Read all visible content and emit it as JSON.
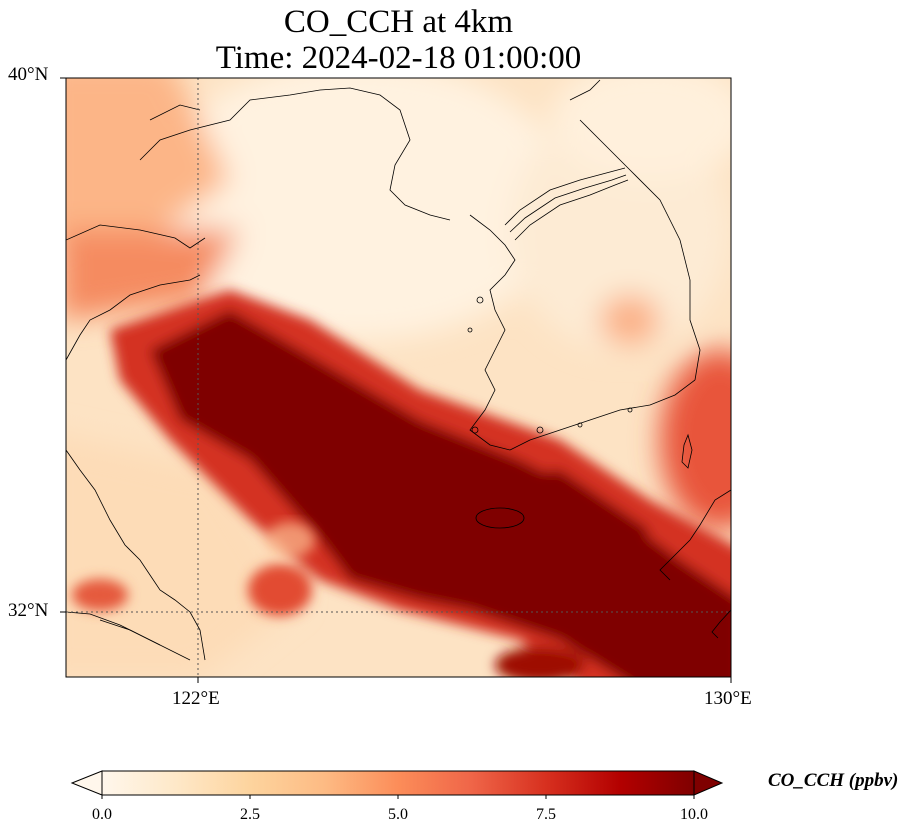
{
  "title_line1": "CO_CCH at 4km",
  "title_line2": "Time: 2024-02-18 01:00:00",
  "lat_labels": [
    "40°N",
    "32°N"
  ],
  "lon_labels": [
    "122°E",
    "130°E"
  ],
  "colorbar": {
    "label": "CO_CCH (ppbv)",
    "ticks": [
      "0.0",
      "2.5",
      "5.0",
      "7.5",
      "10.0"
    ],
    "range": [
      0,
      10
    ],
    "extend": "both",
    "cmap": "OrRd",
    "colors": [
      "#fff7ec",
      "#fee8c8",
      "#fdd49e",
      "#fdbb84",
      "#fc8d59",
      "#ef6548",
      "#d7301f",
      "#b30000",
      "#7f0000"
    ]
  },
  "map": {
    "extent_lon": [
      120,
      130
    ],
    "extent_lat": [
      31,
      40
    ],
    "gridlines": {
      "lon": 122,
      "lat": 32,
      "style": "dotted"
    }
  }
}
